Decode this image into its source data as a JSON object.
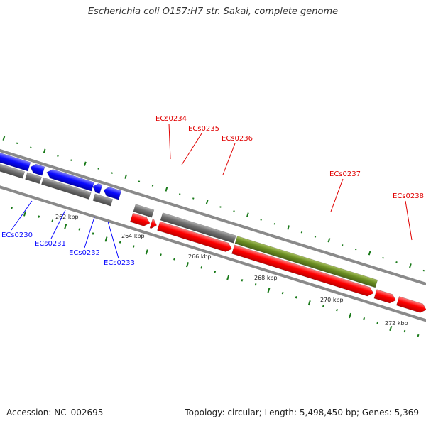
{
  "title": "Escherichia coli O157:H7 str. Sakai, complete genome",
  "footer": {
    "accession": "Accession: NC_002695",
    "stats": "Topology: circular; Length: 5,498,450 bp; Genes: 5,369"
  },
  "colors": {
    "reverse_gene": "#0a0aff",
    "forward_gene": "#ff0000",
    "cds_track": "#707070",
    "highlight_cds": "#6b8e23",
    "tick": "#1a7a1a",
    "backbone": "#888888"
  },
  "kbp_labels": [
    "262 kbp",
    "264 kbp",
    "266 kbp",
    "268 kbp",
    "270 kbp",
    "272 kbp"
  ],
  "genes": [
    {
      "name": "ECs0230",
      "strand": "reverse"
    },
    {
      "name": "ECs0231",
      "strand": "reverse"
    },
    {
      "name": "ECs0232",
      "strand": "reverse"
    },
    {
      "name": "ECs0233",
      "strand": "reverse"
    },
    {
      "name": "ECs0234",
      "strand": "forward"
    },
    {
      "name": "ECs0235",
      "strand": "forward"
    },
    {
      "name": "ECs0236",
      "strand": "forward"
    },
    {
      "name": "ECs0237",
      "strand": "forward"
    },
    {
      "name": "ECs0238",
      "strand": "forward"
    }
  ]
}
